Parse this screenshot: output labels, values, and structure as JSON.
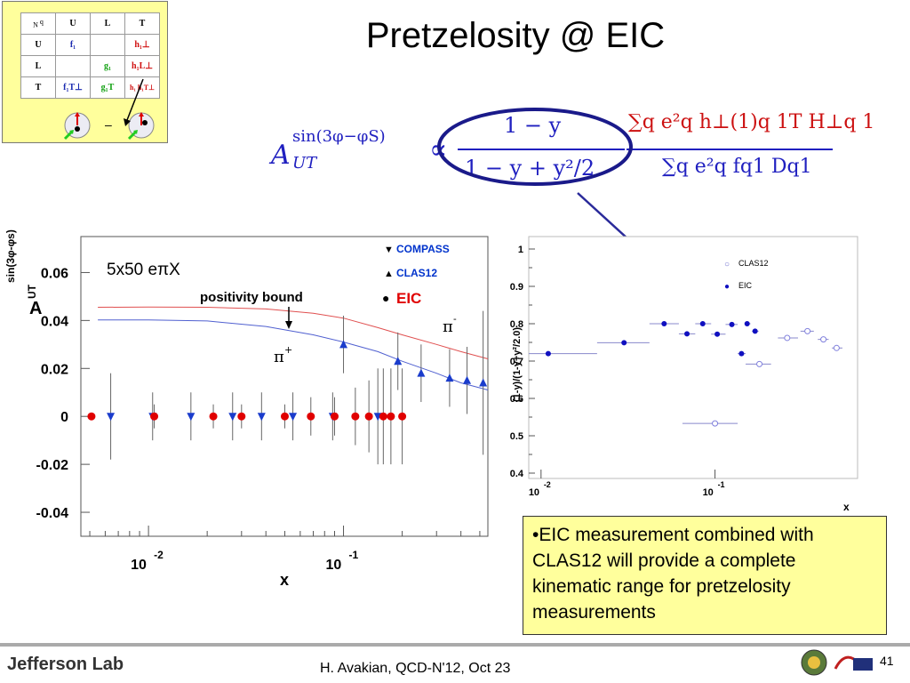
{
  "slide": {
    "title": "Pretzelosity @  EIC",
    "footer": "H. Avakian, QCD-N'12,  Oct 23",
    "page_number": "41",
    "logo": "Jefferson Lab",
    "bullet": "•EIC measurement combined with CLAS12 will provide a complete kinematic range for pretzelosity measurements"
  },
  "tmd_table": {
    "header": [
      "N",
      "q",
      "U",
      "L",
      "T"
    ],
    "rows": [
      {
        "label": "U",
        "cells": [
          "f₁",
          "",
          "h₁⊥"
        ]
      },
      {
        "label": "L",
        "cells": [
          "",
          "g₁",
          "h₁L⊥"
        ]
      },
      {
        "label": "T",
        "cells": [
          "f₁T⊥",
          "g₁T",
          "h₁ h₁T⊥"
        ]
      }
    ],
    "minus": "–"
  },
  "formula": {
    "lhs": "A",
    "lhs_sup": "sin(3φ−φS)",
    "lhs_sub": "UT",
    "propto": "∝",
    "frac1_num": "1 − y",
    "frac1_den": "1 − y + y²/2",
    "frac2_num": "∑q e²q h⊥(1)q 1T H⊥q 1",
    "frac2_den": "∑q e²q fq1 Dq1"
  },
  "chart_data": [
    {
      "type": "scatter",
      "title": "",
      "ylabel_main": "A",
      "ylabel_sup": "sin(3φ-φs)",
      "ylabel_sub": "UT",
      "xlabel": "x",
      "xscale": "log",
      "xlim": [
        0.0045,
        0.55
      ],
      "ylim": [
        -0.05,
        0.075
      ],
      "yticks": [
        {
          "value": 0.06,
          "label": "0.06"
        },
        {
          "value": 0.04,
          "label": "0.04"
        },
        {
          "value": 0.02,
          "label": "0.02"
        },
        {
          "value": 0,
          "label": "0"
        },
        {
          "value": -0.02,
          "label": "-0.02"
        },
        {
          "value": -0.04,
          "label": "-0.04"
        }
      ],
      "xticks": [
        {
          "value": 0.01,
          "base": "10",
          "exp": "-2"
        },
        {
          "value": 0.1,
          "base": "10",
          "exp": "-1"
        }
      ],
      "annotations": {
        "kinematics": "5x50 eπX",
        "bound": "positivity bound",
        "pi_minus": "π",
        "pi_minus_sup": "-",
        "pi_plus": "π",
        "pi_plus_sup": "+"
      },
      "legend": [
        {
          "marker": "▼",
          "label": "COMPASS",
          "color": "#0033cc"
        },
        {
          "marker": "▲",
          "label": "CLAS12",
          "color": "#0033cc"
        },
        {
          "marker": "●",
          "label": "EIC",
          "color": "#e00000"
        }
      ],
      "series": [
        {
          "name": "COMPASS",
          "marker": "down-triangle",
          "color": "#1a3ccc",
          "points": [
            {
              "x": 0.0064,
              "y": 0,
              "err": 0.018
            },
            {
              "x": 0.0105,
              "y": 0,
              "err": 0.01
            },
            {
              "x": 0.0165,
              "y": 0,
              "err": 0.01
            },
            {
              "x": 0.027,
              "y": 0,
              "err": 0.01
            },
            {
              "x": 0.038,
              "y": 0,
              "err": 0.01
            },
            {
              "x": 0.055,
              "y": 0,
              "err": 0.01
            },
            {
              "x": 0.088,
              "y": 0,
              "err": 0.01
            },
            {
              "x": 0.15,
              "y": 0,
              "err": 0.02
            }
          ]
        },
        {
          "name": "CLAS12",
          "marker": "up-triangle",
          "color": "#1a3ccc",
          "points": [
            {
              "x": 0.1,
              "y": 0.03,
              "err": 0.012
            },
            {
              "x": 0.19,
              "y": 0.023,
              "err": 0.012
            },
            {
              "x": 0.25,
              "y": 0.018,
              "err": 0.012
            },
            {
              "x": 0.35,
              "y": 0.016,
              "err": 0.012
            },
            {
              "x": 0.43,
              "y": 0.015,
              "err": 0.014
            },
            {
              "x": 0.52,
              "y": 0.014,
              "err": 0.03
            }
          ]
        },
        {
          "name": "EIC",
          "marker": "circle",
          "color": "#e00000",
          "points": [
            {
              "x": 0.0051,
              "y": 0,
              "err": 0
            },
            {
              "x": 0.0107,
              "y": 0,
              "err": 0.005
            },
            {
              "x": 0.0215,
              "y": 0,
              "err": 0.005
            },
            {
              "x": 0.03,
              "y": 0,
              "err": 0.005
            },
            {
              "x": 0.05,
              "y": 0,
              "err": 0.005
            },
            {
              "x": 0.068,
              "y": 0,
              "err": 0.008
            },
            {
              "x": 0.09,
              "y": 0,
              "err": 0.008
            },
            {
              "x": 0.115,
              "y": 0,
              "err": 0.012
            },
            {
              "x": 0.135,
              "y": 0,
              "err": 0.015
            },
            {
              "x": 0.16,
              "y": 0,
              "err": 0.02
            },
            {
              "x": 0.175,
              "y": 0,
              "err": 0.02
            },
            {
              "x": 0.2,
              "y": 0,
              "err": 0.02
            }
          ]
        }
      ],
      "curves": [
        {
          "name": "positivity bound",
          "color": "#e05050",
          "points": [
            [
              0.0055,
              0.0455
            ],
            [
              0.01,
              0.0456
            ],
            [
              0.02,
              0.0455
            ],
            [
              0.04,
              0.0448
            ],
            [
              0.07,
              0.043
            ],
            [
              0.1,
              0.041
            ],
            [
              0.15,
              0.037
            ],
            [
              0.2,
              0.034
            ],
            [
              0.3,
              0.03
            ],
            [
              0.4,
              0.027
            ],
            [
              0.55,
              0.024
            ]
          ]
        },
        {
          "name": "π+",
          "color": "#5060d0",
          "points": [
            [
              0.0055,
              0.0402
            ],
            [
              0.01,
              0.0402
            ],
            [
              0.02,
              0.0398
            ],
            [
              0.04,
              0.0375
            ],
            [
              0.07,
              0.034
            ],
            [
              0.1,
              0.031
            ],
            [
              0.15,
              0.027
            ],
            [
              0.2,
              0.023
            ],
            [
              0.3,
              0.018
            ],
            [
              0.4,
              0.014
            ],
            [
              0.55,
              0.011
            ]
          ]
        }
      ]
    },
    {
      "type": "scatter",
      "title": "",
      "ylabel": "(1-y)/(1-y+y²/2.0)",
      "xlabel": "x",
      "xscale": "log",
      "xlim": [
        0.0085,
        0.66
      ],
      "ylim": [
        0.4,
        1.0
      ],
      "yticks": [
        {
          "value": 1,
          "label": "1"
        },
        {
          "value": 0.9,
          "label": "0.9"
        },
        {
          "value": 0.8,
          "label": "0.8"
        },
        {
          "value": 0.7,
          "label": "0.7"
        },
        {
          "value": 0.6,
          "label": "0.6"
        },
        {
          "value": 0.5,
          "label": "0.5"
        },
        {
          "value": 0.4,
          "label": "0.4"
        }
      ],
      "xticks": [
        {
          "value": 0.01,
          "base": "10",
          "exp": "-2"
        },
        {
          "value": 0.1,
          "base": "10",
          "exp": "-1"
        }
      ],
      "legend": [
        {
          "marker": "○",
          "label": "CLAS12"
        },
        {
          "marker": "●",
          "label": "EIC"
        }
      ],
      "series": [
        {
          "name": "EIC",
          "marker": "filled-circle",
          "color": "#1010c0",
          "points": [
            {
              "x": 0.011,
              "y": 0.72,
              "xlo": 0.0085,
              "xhi": 0.021
            },
            {
              "x": 0.03,
              "y": 0.749,
              "xlo": 0.021,
              "xhi": 0.042
            },
            {
              "x": 0.051,
              "y": 0.8,
              "xlo": 0.042,
              "xhi": 0.062
            },
            {
              "x": 0.069,
              "y": 0.773,
              "xlo": 0.062,
              "xhi": 0.077
            },
            {
              "x": 0.085,
              "y": 0.8,
              "xlo": 0.077,
              "xhi": 0.095
            },
            {
              "x": 0.103,
              "y": 0.772,
              "xlo": 0.095,
              "xhi": 0.115
            },
            {
              "x": 0.125,
              "y": 0.798,
              "xlo": 0.115,
              "xhi": 0.135
            },
            {
              "x": 0.142,
              "y": 0.72,
              "xlo": 0.135,
              "xhi": 0.15
            },
            {
              "x": 0.153,
              "y": 0.8,
              "xlo": 0.148,
              "xhi": 0.16
            },
            {
              "x": 0.17,
              "y": 0.78,
              "xlo": 0.163,
              "xhi": 0.178
            }
          ]
        },
        {
          "name": "CLAS12",
          "marker": "open-circle",
          "color": "#8080dd",
          "points": [
            {
              "x": 0.1,
              "y": 0.533,
              "xlo": 0.065,
              "xhi": 0.135
            },
            {
              "x": 0.18,
              "y": 0.692,
              "xlo": 0.15,
              "xhi": 0.21
            },
            {
              "x": 0.26,
              "y": 0.762,
              "xlo": 0.23,
              "xhi": 0.3
            },
            {
              "x": 0.34,
              "y": 0.78,
              "xlo": 0.31,
              "xhi": 0.37
            },
            {
              "x": 0.42,
              "y": 0.758,
              "xlo": 0.39,
              "xhi": 0.45
            },
            {
              "x": 0.5,
              "y": 0.735,
              "xlo": 0.47,
              "xhi": 0.54
            }
          ]
        }
      ]
    }
  ]
}
